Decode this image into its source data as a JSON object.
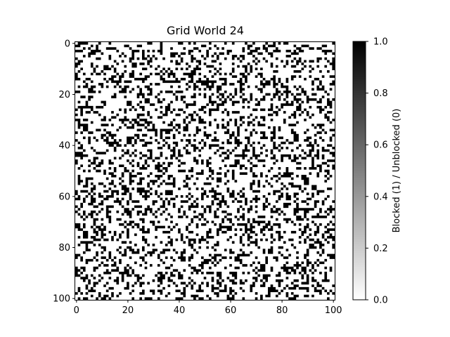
{
  "chart_data": {
    "type": "heatmap",
    "title": "Grid World 24",
    "xlabel": "",
    "ylabel": "",
    "grid_size": 101,
    "blocked_probability": 0.3,
    "xlim": [
      0,
      100
    ],
    "ylim": [
      100,
      0
    ],
    "x_ticks": [
      0,
      20,
      40,
      60,
      80,
      100
    ],
    "y_ticks": [
      0,
      20,
      40,
      60,
      80,
      100
    ],
    "colormap": "gray_r",
    "colors": {
      "blocked": "#000000",
      "unblocked": "#ffffff"
    },
    "colorbar": {
      "label": "Blocked (1) / Unblocked (0)",
      "range": [
        0.0,
        1.0
      ],
      "ticks": [
        "0.0",
        "0.2",
        "0.4",
        "0.6",
        "0.8",
        "1.0"
      ],
      "position": "right"
    },
    "grid": false,
    "legend": "none"
  }
}
